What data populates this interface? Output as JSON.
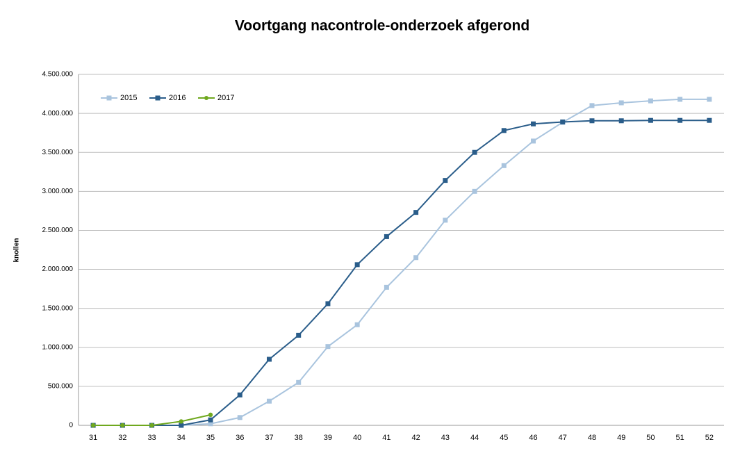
{
  "chart_data": {
    "type": "line",
    "title": "Voortgang  nacontrole-onderzoek afgerond",
    "y_label": "knollen",
    "categories": [
      "31",
      "32",
      "33",
      "34",
      "35",
      "36",
      "37",
      "38",
      "39",
      "40",
      "41",
      "42",
      "43",
      "44",
      "45",
      "46",
      "47",
      "48",
      "49",
      "50",
      "51",
      "52"
    ],
    "series": [
      {
        "name": "2015",
        "color": "#a9c4de",
        "marker": "square",
        "values": [
          0,
          0,
          0,
          0,
          20000,
          100000,
          310000,
          550000,
          1010000,
          1290000,
          1770000,
          2150000,
          2630000,
          3000000,
          3330000,
          3645000,
          3885000,
          4100000,
          4135000,
          4160000,
          4180000,
          4180000
        ]
      },
      {
        "name": "2016",
        "color": "#2a5d8a",
        "marker": "square",
        "values": [
          0,
          0,
          0,
          0,
          70000,
          390000,
          847000,
          1155000,
          1560000,
          2060000,
          2420000,
          2730000,
          3140000,
          3500000,
          3780000,
          3865000,
          3890000,
          3905000,
          3905000,
          3910000,
          3910000,
          3910000
        ]
      },
      {
        "name": "2017",
        "color": "#6fa81e",
        "marker": "circle",
        "values": [
          0,
          0,
          0,
          50000,
          135000,
          null,
          null,
          null,
          null,
          null,
          null,
          null,
          null,
          null,
          null,
          null,
          null,
          null,
          null,
          null,
          null,
          null
        ]
      }
    ],
    "ylim": [
      0,
      4500000
    ],
    "yticks": [
      0,
      {
        "value": 500000,
        "label": "500.000"
      },
      {
        "value": 1000000,
        "label": "1.000.000"
      },
      {
        "value": 1500000,
        "label": "1.500.000"
      },
      {
        "value": 2000000,
        "label": "2.000.000"
      },
      {
        "value": 2500000,
        "label": "2.500.000"
      },
      {
        "value": 3000000,
        "label": "3.000.000"
      },
      {
        "value": 3500000,
        "label": "3.500.000"
      },
      {
        "value": 4000000,
        "label": "4.000.000"
      },
      {
        "value": 4500000,
        "label": "4.500.000"
      }
    ],
    "grid": true,
    "legend": "top-left"
  }
}
